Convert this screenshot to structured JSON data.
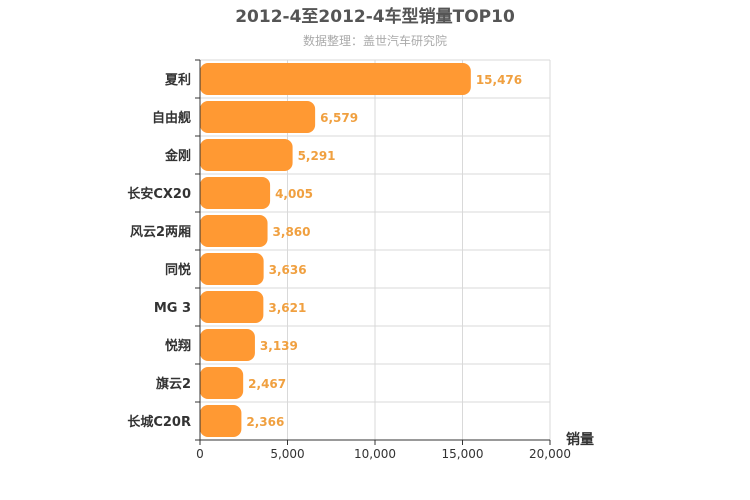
{
  "chart_data": {
    "type": "bar",
    "orientation": "horizontal",
    "title": "2012-4至2012-4车型销量TOP10",
    "subtitle": "数据整理：盖世汽车研究院",
    "categories": [
      "夏利",
      "自由舰",
      "金刚",
      "长安CX20",
      "风云2两厢",
      "同悦",
      "MG 3",
      "悦翔",
      "旗云2",
      "长城C20R"
    ],
    "values": [
      15476,
      6579,
      5291,
      4005,
      3860,
      3636,
      3621,
      3139,
      2467,
      2366
    ],
    "value_labels": [
      "15,476",
      "6,579",
      "5,291",
      "4,005",
      "3,860",
      "3,636",
      "3,621",
      "3,139",
      "2,467",
      "2,366"
    ],
    "xlabel": "销量",
    "xlim": [
      0,
      20000
    ],
    "xticks": [
      0,
      5000,
      10000,
      15000,
      20000
    ],
    "xtick_labels": [
      "0",
      "5,000",
      "10,000",
      "15,000",
      "20,000"
    ],
    "bar_color": "#ff9933",
    "label_color": "#f0a040",
    "grid": true
  }
}
